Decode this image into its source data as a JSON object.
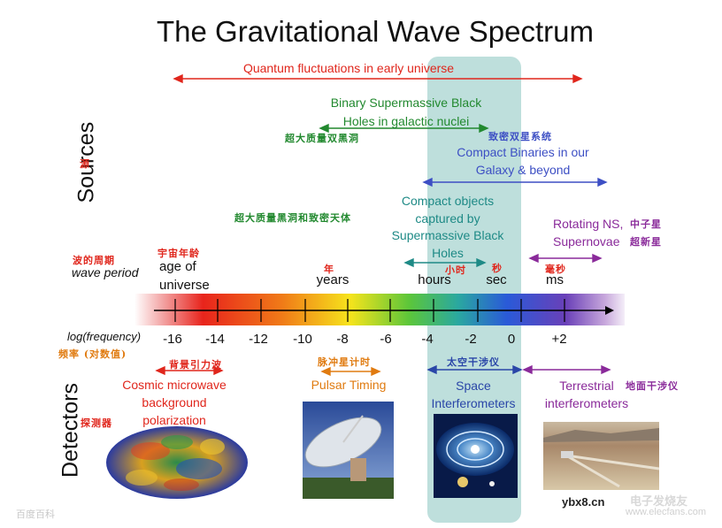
{
  "title": "The Gravitational Wave Spectrum",
  "axis": {
    "sources_label": "Sources",
    "sources_cn": "源",
    "detectors_label": "Detectors",
    "detectors_cn": "探测器",
    "period_cn": "波的周期",
    "period_en": "wave period",
    "freq_en": "log(frequency)",
    "freq_cn": "频率 (对数值)",
    "ticks": [
      "-16",
      "-14",
      "-12",
      "-10",
      "-8",
      "-6",
      "-4",
      "-2",
      "0",
      "+2"
    ]
  },
  "periods": [
    {
      "en": "age of\nuniverse",
      "cn": "宇宙年龄"
    },
    {
      "en": "years",
      "cn": "年"
    },
    {
      "en": "hours",
      "cn": "小时"
    },
    {
      "en": "sec",
      "cn": "秒"
    },
    {
      "en": "ms",
      "cn": "毫秒"
    }
  ],
  "sources": {
    "quantum": "Quantum fluctuations in early universe",
    "binary_smbh": "Binary Supermassive Black\nHoles in galactic nuclei",
    "binary_smbh_cn": "超大质量双黑洞",
    "compact_binaries_cn": "致密双星系统",
    "compact_binaries": "Compact Binaries in our\nGalaxy & beyond",
    "compact_objects": "Compact objects\ncaptured by\nSupermassive Black\nHoles",
    "compact_objects_cn": "超大质量黑洞和致密天体",
    "rotating_ns": "Rotating NS,\nSupernovae",
    "rotating_ns_cn_1": "中子星",
    "rotating_ns_cn_2": "超新星"
  },
  "detectors": {
    "cmb_cn": "背景引力波",
    "cmb": "Cosmic microwave\nbackground\npolarization",
    "pulsar_cn": "脉冲星计时",
    "pulsar": "Pulsar Timing",
    "space_cn": "太空干涉仪",
    "space": "Space\nInterferometers",
    "terrestrial": "Terrestrial\ninterferometers",
    "terrestrial_cn": "地面干涉仪"
  },
  "watermark": {
    "baidu": "百度百科",
    "site": "ybx8.cn",
    "elecfans": "电子发烧友",
    "elecfans_url": "www.elecfans.com"
  },
  "colors": {
    "quantum": "#e0261c",
    "binary_smbh": "#22892f",
    "compact_binaries": "#3d4fc4",
    "compact_objects": "#1e8a86",
    "rotating_ns": "#8a2a9a",
    "cmb": "#e0261c",
    "pulsar": "#e07b10",
    "space": "#2a46a8",
    "terrestrial": "#8a2a9a",
    "band_highlight": "#b7dcd8"
  }
}
